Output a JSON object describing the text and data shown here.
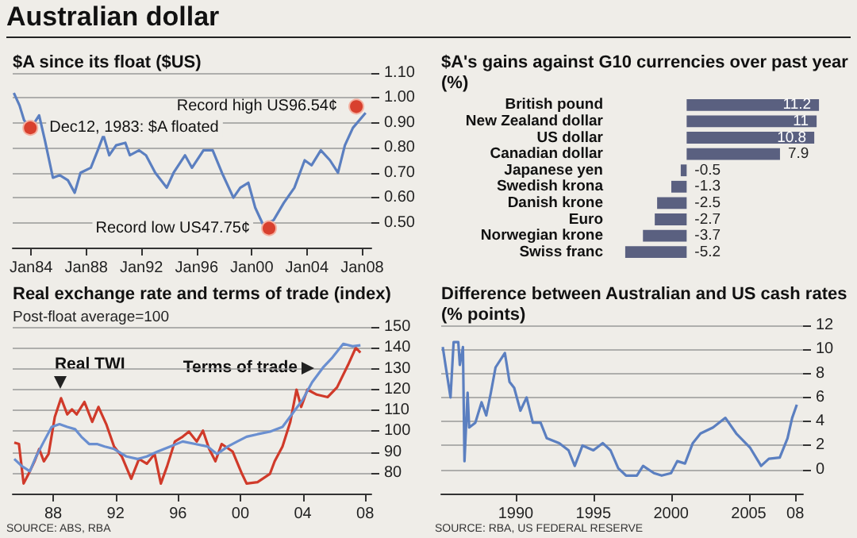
{
  "chart_data": [
    {
      "type": "line",
      "title": "Australian dollar",
      "subtitle": "$A since its float ($US)",
      "series": [
        {
          "color": "#5b7fc0",
          "x": [
            "1982-10",
            "1983-03",
            "1983-07",
            "1984-01",
            "1984-08",
            "1985-01",
            "1985-08",
            "1986-02",
            "1986-09",
            "1987-03",
            "1987-08",
            "1988-05",
            "1988-11",
            "1989-04",
            "1989-09",
            "1990-03",
            "1990-11",
            "1991-03",
            "1991-11",
            "1992-05",
            "1993-01",
            "1993-11",
            "1994-05",
            "1995-03",
            "1995-09",
            "1996-07",
            "1997-03",
            "1997-11",
            "1998-09",
            "1999-03",
            "1999-10",
            "2000-04",
            "2000-11",
            "2001-08",
            "2002-05",
            "2003-02",
            "2003-11",
            "2004-05",
            "2005-01",
            "2005-09",
            "2006-04",
            "2006-10",
            "2007-05",
            "2008-04"
          ],
          "values": [
            1.02,
            0.97,
            0.91,
            0.88,
            0.93,
            0.83,
            0.68,
            0.69,
            0.67,
            0.62,
            0.7,
            0.72,
            0.79,
            0.85,
            0.77,
            0.81,
            0.82,
            0.77,
            0.79,
            0.77,
            0.7,
            0.64,
            0.7,
            0.77,
            0.72,
            0.79,
            0.79,
            0.7,
            0.6,
            0.64,
            0.66,
            0.56,
            0.49,
            0.51,
            0.58,
            0.64,
            0.75,
            0.73,
            0.79,
            0.75,
            0.7,
            0.81,
            0.88,
            0.94
          ]
        }
      ],
      "xlim": [
        "1982-09",
        "2008-09"
      ],
      "xticks": [
        {
          "value": "1984-01",
          "label": "Jan84"
        },
        {
          "value": "1988-01",
          "label": "Jan88"
        },
        {
          "value": "1992-01",
          "label": "Jan92"
        },
        {
          "value": "1996-01",
          "label": "Jan96"
        },
        {
          "value": "2000-01",
          "label": "Jan00"
        },
        {
          "value": "2004-01",
          "label": "Jan04"
        },
        {
          "value": "2008-01",
          "label": "Jan08"
        }
      ],
      "ylim": [
        0.4,
        1.1
      ],
      "yticks": [
        {
          "value": 0.5,
          "label": "0.50"
        },
        {
          "value": 0.6,
          "label": "0.60"
        },
        {
          "value": 0.7,
          "label": "0.70"
        },
        {
          "value": 0.8,
          "label": "0.80"
        },
        {
          "value": 0.9,
          "label": "0.90"
        },
        {
          "value": 1.0,
          "label": "1.00"
        },
        {
          "value": 1.1,
          "label": "1.10"
        }
      ],
      "grid": "y",
      "annotations": [
        {
          "text": "Dec12, 1983: $A floated",
          "x": "1983-12-12",
          "y": 0.88
        },
        {
          "text": "Record high US96.54¢",
          "x": "2007-08",
          "y": 0.9654
        },
        {
          "text": "Record low US47.75¢",
          "x": "2001-04",
          "y": 0.4775
        }
      ]
    },
    {
      "type": "bar",
      "orientation": "horizontal",
      "title": "$A's gains against G10 currencies over past year (%)",
      "categories": [
        "British pound",
        "New Zealand dollar",
        "US dollar",
        "Canadian dollar",
        "Japanese yen",
        "Swedish krona",
        "Danish krone",
        "Euro",
        "Norwegian krone",
        "Swiss franc"
      ],
      "values": [
        11.2,
        11.0,
        10.8,
        7.9,
        -0.5,
        -1.3,
        -2.5,
        -2.7,
        -3.7,
        -5.2
      ],
      "color": "#5a6080",
      "data_labels": true
    },
    {
      "type": "line",
      "title": "Real exchange rate and terms of trade (index)",
      "subtitle": "Post-float average=100",
      "series": [
        {
          "name": "Real TWI",
          "color": "#d03a2a",
          "x": [
            1985.5,
            1985.8,
            1986.1,
            1986.5,
            1986.8,
            1987.1,
            1987.4,
            1987.7,
            1988.1,
            1988.5,
            1988.9,
            1989.2,
            1989.5,
            1990.0,
            1990.5,
            1990.9,
            1991.4,
            1991.9,
            1992.4,
            1993.0,
            1993.5,
            1994.0,
            1994.5,
            1994.9,
            1995.3,
            1995.8,
            1996.3,
            1996.7,
            1997.2,
            1997.6,
            1998.0,
            1998.4,
            1998.8,
            1999.5,
            2000.1,
            2000.4,
            2001.1,
            2001.9,
            2002.2,
            2002.7,
            2003.2,
            2003.6,
            2003.9,
            2004.3,
            2004.9,
            2005.6,
            2006.2,
            2006.9,
            2007.4,
            2007.7
          ],
          "values": [
            94.5,
            93.8,
            74.8,
            80.7,
            85.5,
            91.4,
            85.5,
            89,
            106.8,
            115.8,
            108,
            110.4,
            108,
            114,
            104.4,
            111.6,
            103.3,
            92.6,
            87.8,
            77.1,
            86.6,
            84.3,
            89,
            74.8,
            83.1,
            95,
            97.3,
            99.7,
            95,
            100.2,
            91.4,
            85.5,
            93.8,
            90.2,
            79.5,
            74.8,
            75.5,
            79.5,
            85.5,
            92.6,
            104.4,
            119.9,
            111.6,
            119.9,
            117.5,
            116.3,
            121,
            131.7,
            140,
            137.7
          ]
        },
        {
          "name": "Terms of trade",
          "color": "#6a8fd0",
          "x": [
            1985.5,
            1986.0,
            1986.5,
            1986.9,
            1987.4,
            1987.9,
            1988.4,
            1988.9,
            1989.4,
            1989.8,
            1990.3,
            1990.8,
            1991.3,
            1991.9,
            1992.7,
            1993.4,
            1994.0,
            1994.7,
            1995.5,
            1996.3,
            1997.1,
            1997.9,
            1998.5,
            1999.2,
            1999.8,
            2000.4,
            2001.1,
            2001.9,
            2002.7,
            2003.3,
            2004.0,
            2004.6,
            2005.3,
            2005.9,
            2006.6,
            2007.2,
            2007.7
          ],
          "values": [
            86.6,
            83.1,
            80.7,
            87.8,
            95,
            102,
            103.3,
            102,
            100.9,
            97.3,
            93.8,
            93.8,
            92.6,
            91.4,
            87.8,
            86.6,
            87.8,
            90.2,
            92.6,
            95,
            93.8,
            92.6,
            89,
            92.6,
            95,
            97.3,
            98.5,
            99.7,
            102,
            108,
            115.1,
            123.4,
            130.5,
            135.3,
            141.9,
            140.7,
            141.2
          ]
        }
      ],
      "xlim": [
        1985.4,
        2008.4
      ],
      "xticks": [
        {
          "value": 1988,
          "label": "88"
        },
        {
          "value": 1992,
          "label": "92"
        },
        {
          "value": 1996,
          "label": "96"
        },
        {
          "value": 2000,
          "label": "00"
        },
        {
          "value": 2004,
          "label": "04"
        },
        {
          "value": 2008,
          "label": "08"
        }
      ],
      "ylim": [
        70,
        150
      ],
      "yticks": [
        80,
        90,
        100,
        110,
        120,
        130,
        140,
        150
      ],
      "grid": "y",
      "annotations": [
        "SOURCE: ABS, RBA"
      ]
    },
    {
      "type": "line",
      "title": "Difference between Australian and US cash rates (% points)",
      "series": [
        {
          "color": "#5b7fc0",
          "x": [
            1985.3,
            1985.5,
            1985.8,
            1986.0,
            1986.3,
            1986.4,
            1986.6,
            1986.7,
            1986.9,
            1987.0,
            1987.4,
            1987.8,
            1988.1,
            1988.4,
            1988.7,
            1989.3,
            1989.6,
            1989.9,
            1990.3,
            1990.7,
            1991.1,
            1991.6,
            1992.0,
            1992.8,
            1993.4,
            1993.8,
            1994.3,
            1995.0,
            1995.6,
            1996.1,
            1996.6,
            1997.1,
            1997.8,
            1998.2,
            1998.9,
            1999.4,
            2000.0,
            2000.4,
            2000.9,
            2001.4,
            2001.9,
            2002.7,
            2003.5,
            2004.2,
            2005.1,
            2005.8,
            2006.3,
            2007.0,
            2007.5,
            2007.8,
            2008.1
          ],
          "values": [
            10.2,
            8.5,
            6.0,
            10.6,
            10.6,
            8.7,
            10.2,
            0.7,
            6.4,
            3.5,
            3.9,
            5.6,
            4.5,
            6.4,
            8.5,
            9.7,
            7.3,
            6.8,
            4.9,
            6.0,
            3.9,
            3.9,
            2.6,
            2.2,
            1.6,
            0.3,
            2.0,
            1.6,
            2.2,
            1.6,
            0.1,
            -0.5,
            -0.5,
            0.3,
            -0.3,
            -0.5,
            -0.3,
            0.7,
            0.5,
            2.2,
            3.0,
            3.5,
            4.3,
            3.0,
            1.8,
            0.3,
            0.9,
            1.0,
            2.6,
            4.3,
            5.4
          ]
        }
      ],
      "xlim": [
        1985.2,
        2008.5
      ],
      "xticks": [
        1990,
        1995,
        2000,
        2005,
        {
          "value": 2008,
          "label": "08"
        }
      ],
      "ylim": [
        -2,
        12
      ],
      "yticks": [
        0,
        2,
        4,
        6,
        8,
        10,
        12
      ],
      "grid": "y",
      "annotations": [
        "SOURCE: RBA, US FEDERAL RESERVE"
      ]
    }
  ]
}
